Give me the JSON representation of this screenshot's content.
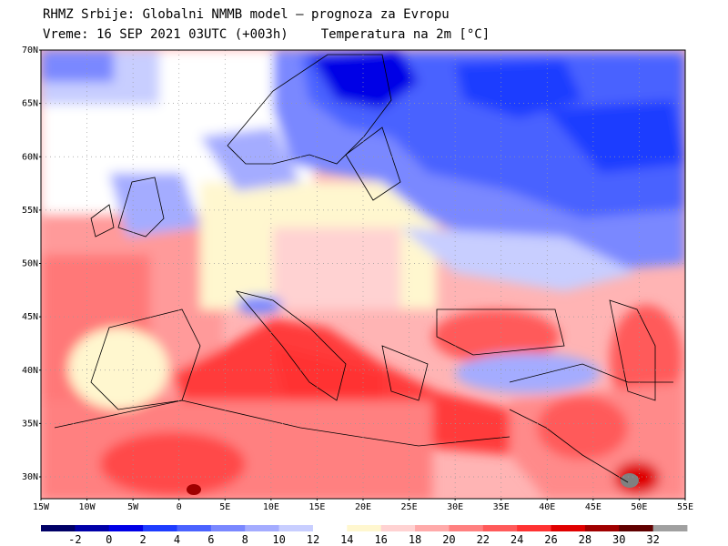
{
  "header": {
    "line1": "RHMZ Srbije: Globalni NMMB model — prognoza za Evropu",
    "line2_left": "Vreme: 16 SEP 2021 03UTC (+003h)",
    "line2_right": "Temperatura na 2m [°C]"
  },
  "axes": {
    "lat_labels": [
      "70N",
      "65N",
      "60N",
      "55N",
      "50N",
      "45N",
      "40N",
      "35N",
      "30N"
    ],
    "lon_labels": [
      "15W",
      "10W",
      "5W",
      "0",
      "5E",
      "10E",
      "15E",
      "20E",
      "25E",
      "30E",
      "35E",
      "40E",
      "45E",
      "50E",
      "55E"
    ]
  },
  "colorbar": {
    "labels": [
      "-2",
      "0",
      "2",
      "4",
      "6",
      "8",
      "10",
      "12",
      "14",
      "16",
      "18",
      "20",
      "22",
      "24",
      "26",
      "28",
      "30",
      "32"
    ],
    "colors": [
      "#000066",
      "#0000a8",
      "#0000e6",
      "#1e3cff",
      "#4a62ff",
      "#7a88ff",
      "#a4acff",
      "#c8ceff",
      "#ffffff",
      "#fff7cf",
      "#ffd2d2",
      "#ffaaaa",
      "#ff8080",
      "#ff5a5a",
      "#ff3232",
      "#e00000",
      "#a00000",
      "#600000",
      "#a0a0a0"
    ]
  },
  "colors": {
    "sea_warm": "#ff3a3a",
    "cold": "#3a55ff",
    "neutral": "#ffffff"
  }
}
